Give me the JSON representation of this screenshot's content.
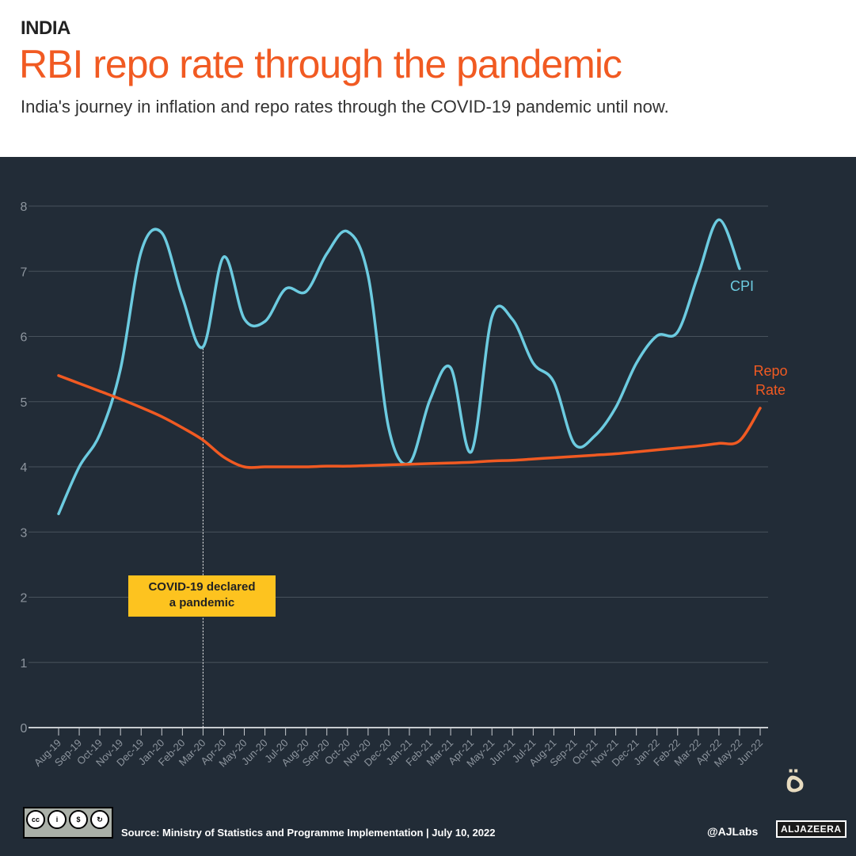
{
  "header": {
    "kicker": "INDIA",
    "title": "RBI repo rate through the pandemic",
    "subtitle": "India's journey in inflation and repo rates through the COVID-19 pandemic until now."
  },
  "chart_data": {
    "type": "line",
    "categories": [
      "Aug-19",
      "Sep-19",
      "Oct-19",
      "Nov-19",
      "Dec-19",
      "Jan-20",
      "Feb-20",
      "Mar-20",
      "Apr-20",
      "May-20",
      "Jun-20",
      "Jul-20",
      "Aug-20",
      "Sep-20",
      "Oct-20",
      "Nov-20",
      "Dec-20",
      "Jan-21",
      "Feb-21",
      "Mar-21",
      "Apr-21",
      "May-21",
      "Jun-21",
      "Jul-21",
      "Aug-21",
      "Sep-21",
      "Oct-21",
      "Nov-21",
      "Dec-21",
      "Jan-22",
      "Feb-22",
      "Mar-22",
      "Apr-22",
      "May-22",
      "Jun-22"
    ],
    "ylim": [
      0,
      8
    ],
    "yticks": [
      0,
      1,
      2,
      3,
      4,
      5,
      6,
      7,
      8
    ],
    "grid": true,
    "series": [
      {
        "name": "CPI",
        "color": "#6ccbe0",
        "values": [
          3.28,
          4.0,
          4.5,
          5.5,
          7.3,
          7.59,
          6.6,
          5.84,
          7.22,
          6.27,
          6.23,
          6.73,
          6.69,
          7.27,
          7.61,
          6.93,
          4.59,
          4.06,
          5.03,
          5.52,
          4.23,
          6.3,
          6.26,
          5.59,
          5.3,
          4.35,
          4.48,
          4.91,
          5.59,
          6.01,
          6.07,
          6.95,
          7.79,
          7.04,
          null
        ]
      },
      {
        "name": "Repo Rate",
        "label_lines": [
          "Repo",
          "Rate"
        ],
        "color": "#f15a22",
        "values": [
          5.4,
          5.28,
          5.16,
          5.04,
          4.91,
          4.77,
          4.6,
          4.41,
          4.15,
          4.0,
          4.0,
          4.0,
          4.0,
          4.01,
          4.01,
          4.02,
          4.03,
          4.04,
          4.05,
          4.06,
          4.07,
          4.09,
          4.1,
          4.12,
          4.14,
          4.16,
          4.18,
          4.2,
          4.23,
          4.26,
          4.29,
          4.32,
          4.36,
          4.4,
          4.9
        ]
      }
    ],
    "annotations": [
      {
        "x": "Mar-20",
        "text_lines": [
          "COVID-19 declared",
          "a pandemic"
        ],
        "color": "#fdc31f"
      }
    ]
  },
  "footer": {
    "source": "Source: Ministry of Statistics and Programme Implementation |  July 10, 2022",
    "handle": "@AJLabs",
    "logo": "ALJAZEERA",
    "license": [
      "cc",
      "by",
      "nc",
      "sa"
    ]
  }
}
